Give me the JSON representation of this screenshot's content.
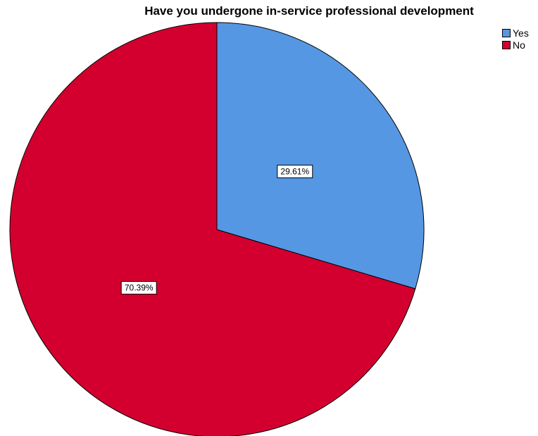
{
  "chart_data": {
    "type": "pie",
    "title": "Have you undergone in-service professional development",
    "categories": [
      "Yes",
      "No"
    ],
    "values": [
      29.61,
      70.39
    ],
    "labels": [
      "29.61%",
      "70.39%"
    ],
    "colors": [
      "#5597E2",
      "#D3002F"
    ],
    "start_angle": "12 o'clock",
    "direction": "clockwise",
    "legend_position": "top-right"
  }
}
